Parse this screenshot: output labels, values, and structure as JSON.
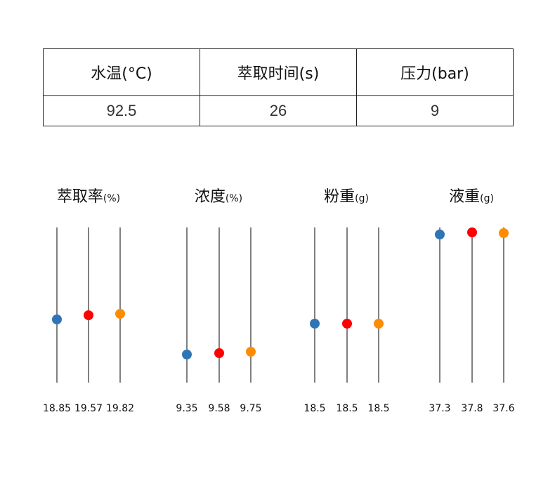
{
  "params_table": {
    "headers": [
      {
        "text": "水温(°C)"
      },
      {
        "text": "萃取时间(s)"
      },
      {
        "text": "压力(bar)"
      }
    ],
    "values": [
      "92.5",
      "26",
      "9"
    ]
  },
  "colors": {
    "sample_1": "#2e75b6",
    "sample_2": "#ff0000",
    "sample_3": "#ff8c00"
  },
  "chart_data": [
    {
      "type": "scatter",
      "title": "萃取率",
      "unit": "(%)",
      "values": [
        18.85,
        19.57,
        19.82
      ],
      "labels": [
        "18.85",
        "19.57",
        "19.82"
      ]
    },
    {
      "type": "scatter",
      "title": "浓度",
      "unit": "(%)",
      "values": [
        9.35,
        9.58,
        9.75
      ],
      "labels": [
        "9.35",
        "9.58",
        "9.75"
      ]
    },
    {
      "type": "scatter",
      "title": "粉重",
      "unit": "(g)",
      "values": [
        18.5,
        18.5,
        18.5
      ],
      "labels": [
        "18.5",
        "18.5",
        "18.5"
      ]
    },
    {
      "type": "scatter",
      "title": "液重",
      "unit": "(g)",
      "values": [
        37.3,
        37.8,
        37.6
      ],
      "labels": [
        "37.3",
        "37.8",
        "37.6"
      ]
    }
  ]
}
